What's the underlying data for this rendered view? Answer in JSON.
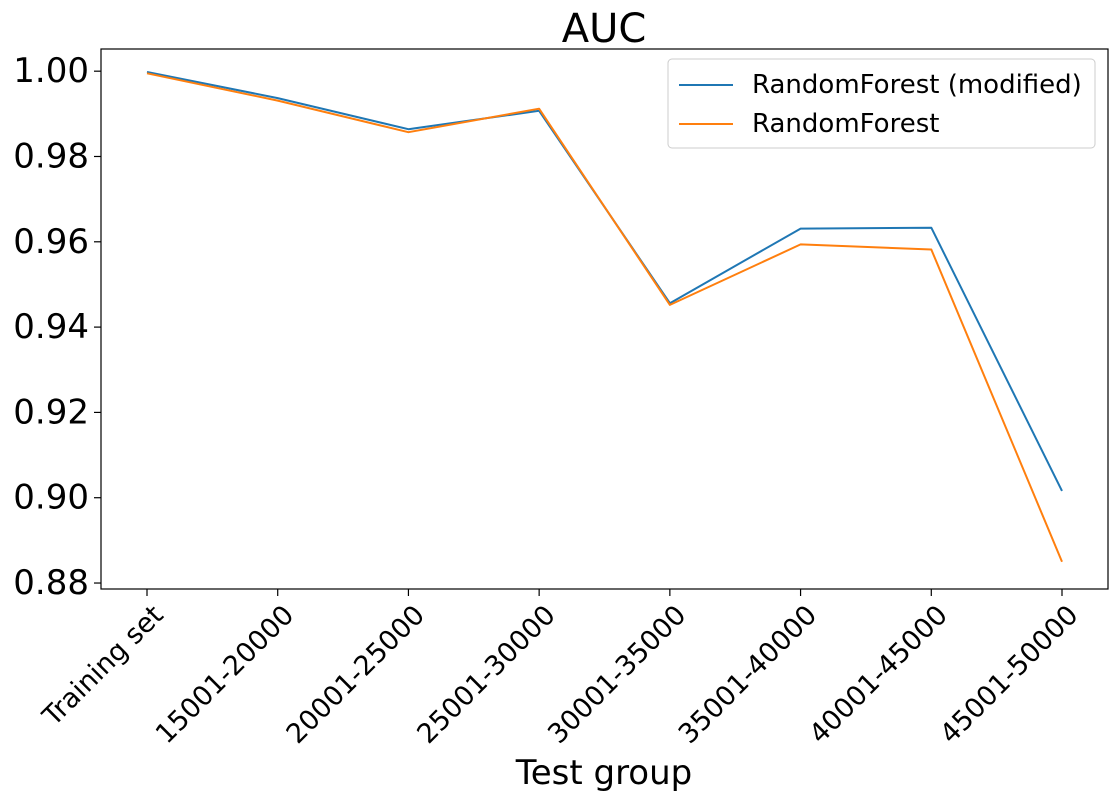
{
  "chart_data": {
    "type": "line",
    "title": "AUC",
    "xlabel": "Test group",
    "ylabel": "",
    "categories": [
      "Training set",
      "15001-20000",
      "20001-25000",
      "25001-30000",
      "30001-35000",
      "35001-40000",
      "40001-45000",
      "45001-50000"
    ],
    "series": [
      {
        "name": "RandomForest (modified)",
        "color": "#1f77b4",
        "values": [
          0.9998,
          0.9937,
          0.9864,
          0.9907,
          0.9456,
          0.9631,
          0.9633,
          0.9016
        ]
      },
      {
        "name": "RandomForest",
        "color": "#ff7f0e",
        "values": [
          0.9995,
          0.9931,
          0.9857,
          0.9912,
          0.9452,
          0.9594,
          0.9582,
          0.885
        ]
      }
    ],
    "ylim": [
      0.8786,
      1.0052
    ],
    "yticks": [
      "0.88",
      "0.90",
      "0.92",
      "0.94",
      "0.96",
      "0.98",
      "1.00"
    ],
    "yticks_values": [
      0.88,
      0.9,
      0.92,
      0.94,
      0.96,
      0.98,
      1.0
    ],
    "grid": false,
    "legend_position": "top-right"
  }
}
